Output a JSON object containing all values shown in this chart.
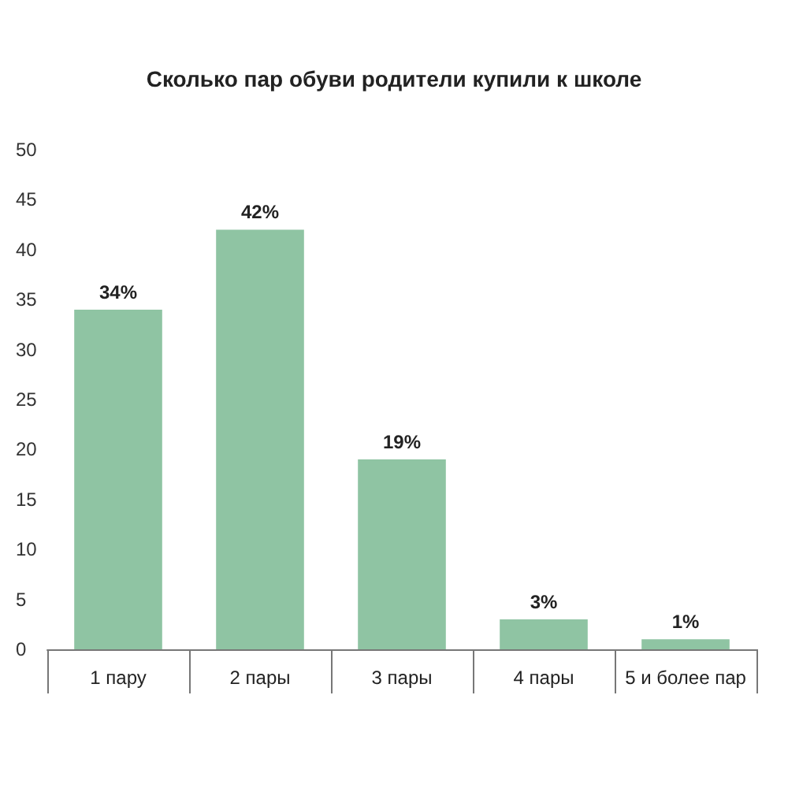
{
  "chart_data": {
    "type": "bar",
    "title": "Сколько пар обуви родители купили к школе",
    "categories": [
      "1 пару",
      "2 пары",
      "3 пары",
      "4 пары",
      "5 и более пар"
    ],
    "values": [
      34,
      42,
      19,
      3,
      1
    ],
    "value_labels": [
      "34%",
      "42%",
      "19%",
      "3%",
      "1%"
    ],
    "color": "#8fc4a3",
    "ylim": [
      0,
      50
    ],
    "yticks": [
      0,
      5,
      10,
      15,
      20,
      25,
      30,
      35,
      40,
      45,
      50
    ],
    "grid": false
  }
}
